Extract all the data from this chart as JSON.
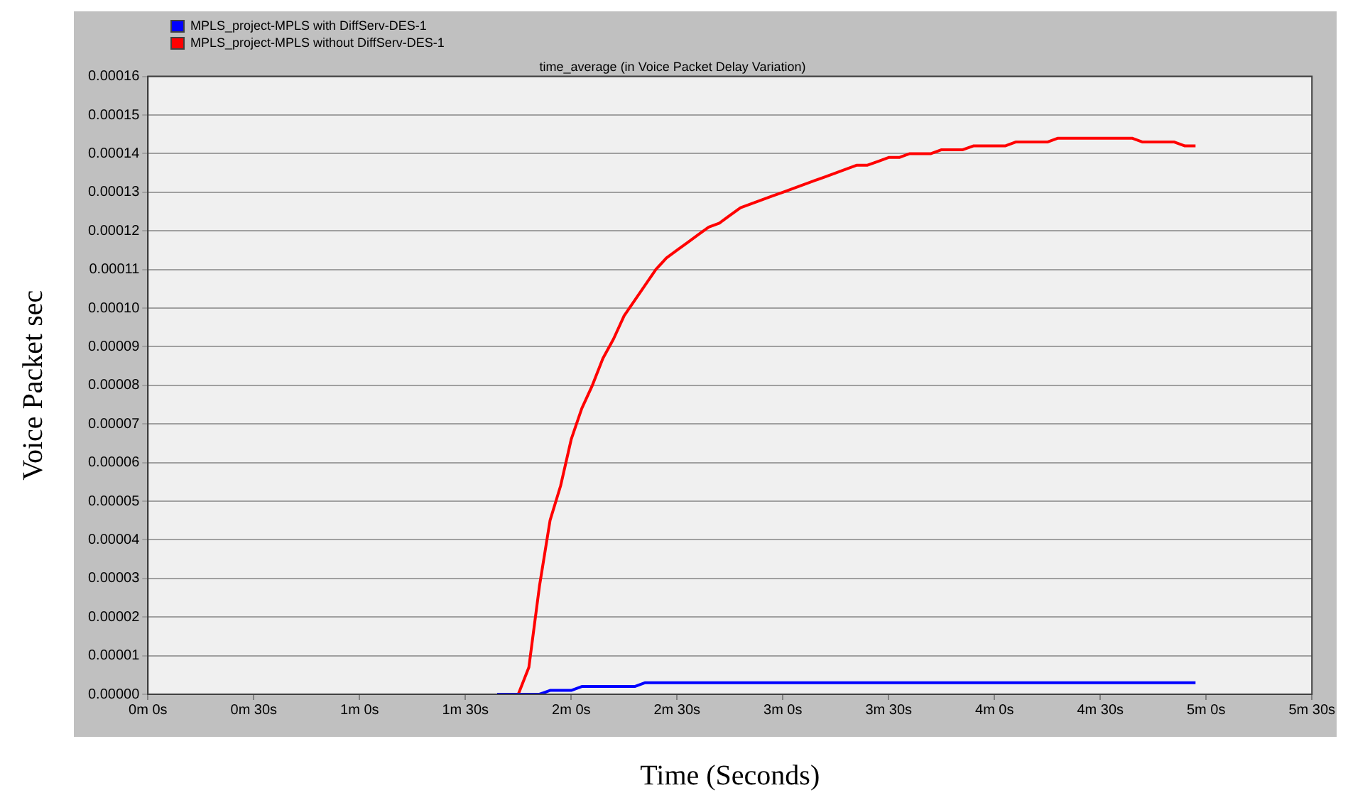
{
  "chart_data": {
    "type": "line",
    "title": "time_average (in Voice Packet Delay Variation)",
    "xlabel": "Time (Seconds)",
    "ylabel": "Voice Packet sec",
    "categories": [
      "0m 0s",
      null,
      null,
      null,
      null,
      null,
      null,
      null,
      null,
      null,
      "0m 30s",
      null,
      null,
      null,
      null,
      null,
      null,
      null,
      null,
      null,
      "1m 0s",
      null,
      null,
      null,
      null,
      null,
      null,
      null,
      null,
      null,
      "1m 30s",
      null,
      null,
      null,
      null,
      null,
      null,
      null,
      null,
      null,
      "2m 0s",
      null,
      null,
      null,
      null,
      null,
      null,
      null,
      null,
      null,
      "2m 30s",
      null,
      null,
      null,
      null,
      null,
      null,
      null,
      null,
      null,
      "3m 0s",
      null,
      null,
      null,
      null,
      null,
      null,
      null,
      null,
      null,
      "3m 30s",
      null,
      null,
      null,
      null,
      null,
      null,
      null,
      null,
      null,
      "4m 0s",
      null,
      null,
      null,
      null,
      null,
      null,
      null,
      null,
      null,
      "4m 30s",
      null,
      null,
      null,
      null,
      null,
      null,
      null,
      null,
      null,
      "5m 0s",
      null,
      null,
      null,
      null,
      null,
      null,
      null,
      null,
      null,
      "5m 30s"
    ],
    "series": [
      {
        "name": "MPLS_project-MPLS with DiffServ-DES-1",
        "color": "#0000ff",
        "values": [
          null,
          null,
          null,
          null,
          null,
          null,
          null,
          null,
          null,
          null,
          null,
          null,
          null,
          null,
          null,
          null,
          null,
          null,
          null,
          null,
          null,
          null,
          null,
          null,
          null,
          null,
          null,
          null,
          null,
          null,
          null,
          null,
          null,
          0,
          0,
          0,
          0,
          0,
          1e-06,
          1e-06,
          1e-06,
          2e-06,
          2e-06,
          2e-06,
          2e-06,
          2e-06,
          2e-06,
          3e-06,
          3e-06,
          3e-06,
          3e-06,
          3e-06,
          3e-06,
          3e-06,
          3e-06,
          3e-06,
          3e-06,
          3e-06,
          3e-06,
          3e-06,
          3e-06,
          3e-06,
          3e-06,
          3e-06,
          3e-06,
          3e-06,
          3e-06,
          3e-06,
          3e-06,
          3e-06,
          3e-06,
          3e-06,
          3e-06,
          3e-06,
          3e-06,
          3e-06,
          3e-06,
          3e-06,
          3e-06,
          3e-06,
          3e-06,
          3e-06,
          3e-06,
          3e-06,
          3e-06,
          3e-06,
          3e-06,
          3e-06,
          3e-06,
          3e-06,
          3e-06,
          3e-06,
          3e-06,
          3e-06,
          3e-06,
          3e-06,
          3e-06,
          3e-06,
          3e-06,
          3e-06,
          null,
          null,
          null,
          null,
          null,
          null,
          null,
          null,
          null,
          null,
          null
        ]
      },
      {
        "name": "MPLS_project-MPLS without DiffServ-DES-1",
        "color": "#ff0000",
        "values": [
          null,
          null,
          null,
          null,
          null,
          null,
          null,
          null,
          null,
          null,
          null,
          null,
          null,
          null,
          null,
          null,
          null,
          null,
          null,
          null,
          null,
          null,
          null,
          null,
          null,
          null,
          null,
          null,
          null,
          null,
          null,
          null,
          null,
          null,
          null,
          0,
          7e-06,
          2.8e-05,
          4.5e-05,
          5.4e-05,
          6.6e-05,
          7.4e-05,
          8e-05,
          8.7e-05,
          9.2e-05,
          9.8e-05,
          0.000102,
          0.000106,
          0.00011,
          0.000113,
          0.000115,
          0.000117,
          0.000119,
          0.000121,
          0.000122,
          0.000124,
          0.000126,
          0.000127,
          0.000128,
          0.000129,
          0.00013,
          0.000131,
          0.000132,
          0.000133,
          0.000134,
          0.000135,
          0.000136,
          0.000137,
          0.000137,
          0.000138,
          0.000139,
          0.000139,
          0.00014,
          0.00014,
          0.00014,
          0.000141,
          0.000141,
          0.000141,
          0.000142,
          0.000142,
          0.000142,
          0.000142,
          0.000143,
          0.000143,
          0.000143,
          0.000143,
          0.000144,
          0.000144,
          0.000144,
          0.000144,
          0.000144,
          0.000144,
          0.000144,
          0.000144,
          0.000143,
          0.000143,
          0.000143,
          0.000143,
          0.000142,
          0.000142,
          null,
          null,
          null,
          null,
          null,
          null,
          null,
          null,
          null,
          null,
          null
        ]
      }
    ],
    "ylim": [
      0,
      0.00016
    ],
    "yticks": [
      {
        "value": 0,
        "label": "0.00000"
      },
      {
        "value": 1e-05,
        "label": "0.00001"
      },
      {
        "value": 2e-05,
        "label": "0.00002"
      },
      {
        "value": 3e-05,
        "label": "0.00003"
      },
      {
        "value": 4e-05,
        "label": "0.00004"
      },
      {
        "value": 5e-05,
        "label": "0.00005"
      },
      {
        "value": 6e-05,
        "label": "0.00006"
      },
      {
        "value": 7e-05,
        "label": "0.00007"
      },
      {
        "value": 8e-05,
        "label": "0.00008"
      },
      {
        "value": 9e-05,
        "label": "0.00009"
      },
      {
        "value": 0.0001,
        "label": "0.00010"
      },
      {
        "value": 0.00011,
        "label": "0.00011"
      },
      {
        "value": 0.00012,
        "label": "0.00012"
      },
      {
        "value": 0.00013,
        "label": "0.00013"
      },
      {
        "value": 0.00014,
        "label": "0.00014"
      },
      {
        "value": 0.00015,
        "label": "0.00015"
      },
      {
        "value": 0.00016,
        "label": "0.00016"
      }
    ],
    "grid": "y",
    "legend": "top left",
    "marker": "none",
    "line_style": "solid"
  }
}
